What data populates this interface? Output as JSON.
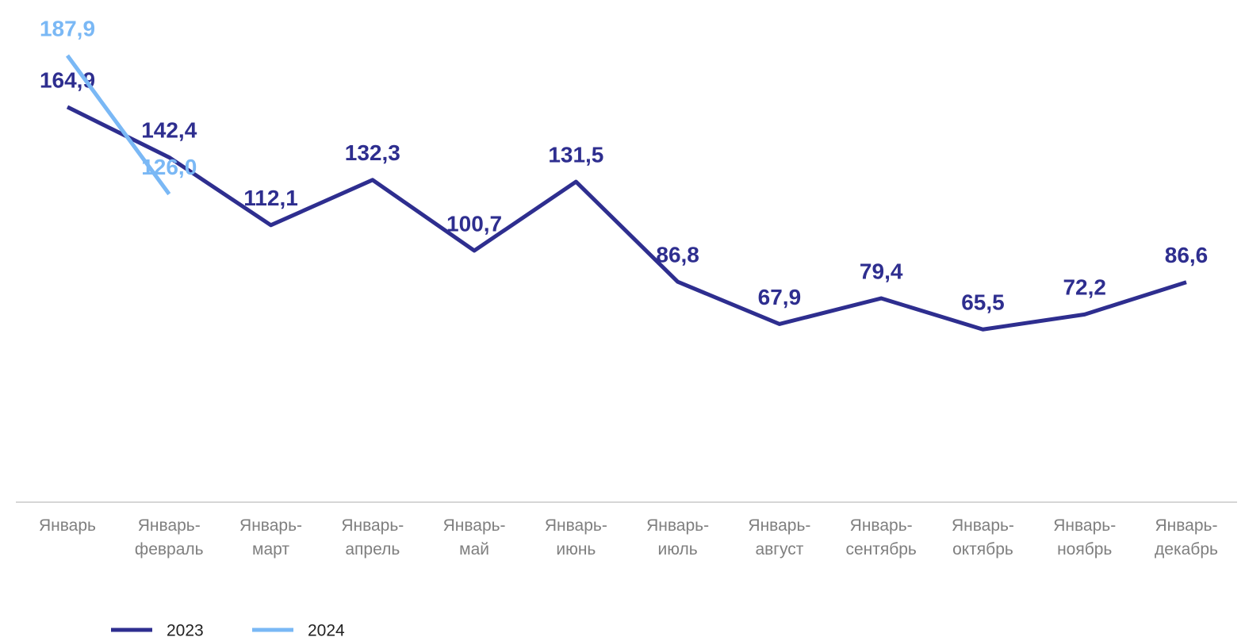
{
  "chart_data": {
    "type": "line",
    "categories": [
      "Январь",
      "Январь-февраль",
      "Январь-март",
      "Январь-апрель",
      "Январь-май",
      "Январь-июнь",
      "Январь-июль",
      "Январь-август",
      "Январь-сентябрь",
      "Январь-октябрь",
      "Январь-ноябрь",
      "Январь-декабрь"
    ],
    "series": [
      {
        "name": "2023",
        "color": "#2e2e8f",
        "values": [
          164.9,
          142.4,
          112.1,
          132.3,
          100.7,
          131.5,
          86.8,
          67.9,
          79.4,
          65.5,
          72.2,
          86.6
        ],
        "value_labels": [
          "164,9",
          "142,4",
          "112,1",
          "132,3",
          "100,7",
          "131,5",
          "86,8",
          "67,9",
          "79,4",
          "65,5",
          "72,2",
          "86,6"
        ]
      },
      {
        "name": "2024",
        "color": "#7ab8f5",
        "values": [
          187.9,
          126.0,
          null,
          null,
          null,
          null,
          null,
          null,
          null,
          null,
          null,
          null
        ],
        "value_labels": [
          "187,9",
          "126,0",
          null,
          null,
          null,
          null,
          null,
          null,
          null,
          null,
          null,
          null
        ]
      }
    ],
    "legend": "bottom-left"
  }
}
